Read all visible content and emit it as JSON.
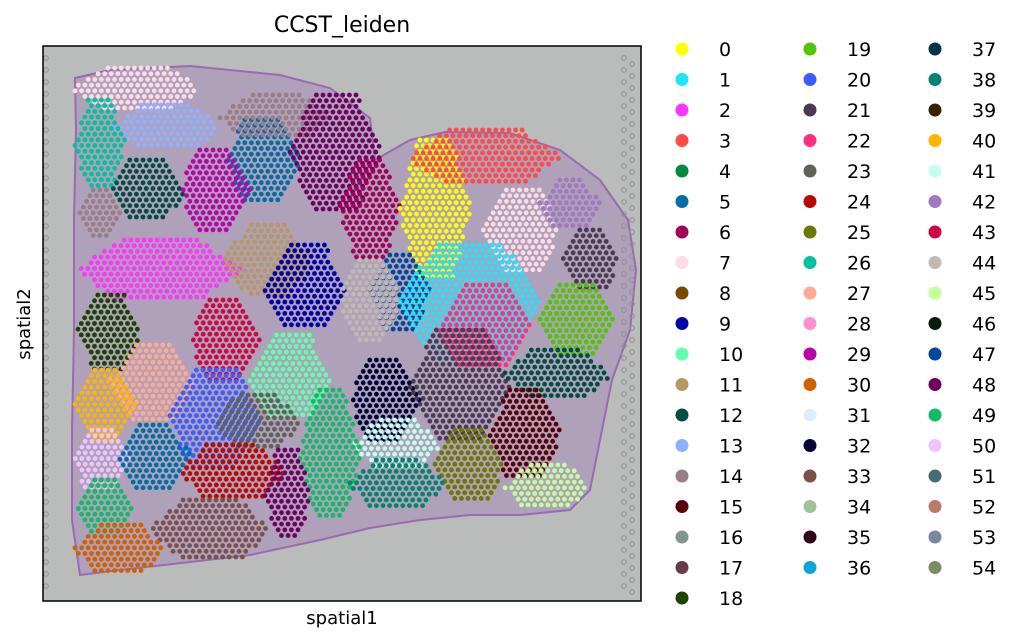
{
  "chart_data": {
    "type": "scatter",
    "title": "CCST_leiden",
    "xlabel": "spatial1",
    "ylabel": "spatial2",
    "grid": false,
    "ticks": false,
    "background": "tissue-image",
    "legend": {
      "placement": "right",
      "columns": 3,
      "entries": [
        {
          "label": "0",
          "color": "#ffff00"
        },
        {
          "label": "1",
          "color": "#1ce6ff"
        },
        {
          "label": "2",
          "color": "#ff34ff"
        },
        {
          "label": "3",
          "color": "#ff4a46"
        },
        {
          "label": "4",
          "color": "#008941"
        },
        {
          "label": "5",
          "color": "#006fa6"
        },
        {
          "label": "6",
          "color": "#a30059"
        },
        {
          "label": "7",
          "color": "#ffdbe5"
        },
        {
          "label": "8",
          "color": "#7a4900"
        },
        {
          "label": "9",
          "color": "#0000a6"
        },
        {
          "label": "10",
          "color": "#63ffac"
        },
        {
          "label": "11",
          "color": "#b79762"
        },
        {
          "label": "12",
          "color": "#004d43"
        },
        {
          "label": "13",
          "color": "#8fb0ff"
        },
        {
          "label": "14",
          "color": "#997d87"
        },
        {
          "label": "15",
          "color": "#5a0007"
        },
        {
          "label": "16",
          "color": "#809693"
        },
        {
          "label": "17",
          "color": "#6a3a4c"
        },
        {
          "label": "18",
          "color": "#1b4400"
        },
        {
          "label": "19",
          "color": "#4fc601"
        },
        {
          "label": "20",
          "color": "#3b5dff"
        },
        {
          "label": "21",
          "color": "#4a3b53"
        },
        {
          "label": "22",
          "color": "#ff2f80"
        },
        {
          "label": "23",
          "color": "#61615a"
        },
        {
          "label": "24",
          "color": "#ba0900"
        },
        {
          "label": "25",
          "color": "#6b7900"
        },
        {
          "label": "26",
          "color": "#00c2a0"
        },
        {
          "label": "27",
          "color": "#ffaa92"
        },
        {
          "label": "28",
          "color": "#ff90c9"
        },
        {
          "label": "29",
          "color": "#b903aa"
        },
        {
          "label": "30",
          "color": "#d16100"
        },
        {
          "label": "31",
          "color": "#ddefff"
        },
        {
          "label": "32",
          "color": "#000035"
        },
        {
          "label": "33",
          "color": "#7b4f4b"
        },
        {
          "label": "34",
          "color": "#a1c299"
        },
        {
          "label": "35",
          "color": "#300018"
        },
        {
          "label": "36",
          "color": "#0aa6d8"
        },
        {
          "label": "37",
          "color": "#013349"
        },
        {
          "label": "38",
          "color": "#00846f"
        },
        {
          "label": "39",
          "color": "#372101"
        },
        {
          "label": "40",
          "color": "#ffb500"
        },
        {
          "label": "41",
          "color": "#c2ffed"
        },
        {
          "label": "42",
          "color": "#a079bf"
        },
        {
          "label": "43",
          "color": "#cc0744"
        },
        {
          "label": "44",
          "color": "#c0b9b2"
        },
        {
          "label": "45",
          "color": "#c2ff99"
        },
        {
          "label": "46",
          "color": "#001e09"
        },
        {
          "label": "47",
          "color": "#00489c"
        },
        {
          "label": "48",
          "color": "#6f0062"
        },
        {
          "label": "49",
          "color": "#0cbd66"
        },
        {
          "label": "50",
          "color": "#eec3ff"
        },
        {
          "label": "51",
          "color": "#456d75"
        },
        {
          "label": "52",
          "color": "#b77b68"
        },
        {
          "label": "53",
          "color": "#7a87a1"
        },
        {
          "label": "54",
          "color": "#788d66"
        }
      ]
    },
    "regions": [
      {
        "cluster": "7",
        "x": [
          75,
          200
        ],
        "y": [
          68,
          110
        ]
      },
      {
        "cluster": "13",
        "x": [
          115,
          220
        ],
        "y": [
          105,
          150
        ]
      },
      {
        "cluster": "5",
        "x": [
          225,
          300
        ],
        "y": [
          120,
          200
        ]
      },
      {
        "cluster": "14",
        "x": [
          220,
          330
        ],
        "y": [
          95,
          140
        ]
      },
      {
        "cluster": "26",
        "x": [
          75,
          125
        ],
        "y": [
          100,
          190
        ]
      },
      {
        "cluster": "12",
        "x": [
          110,
          185
        ],
        "y": [
          160,
          220
        ]
      },
      {
        "cluster": "29",
        "x": [
          180,
          250
        ],
        "y": [
          150,
          230
        ]
      },
      {
        "cluster": "48",
        "x": [
          290,
          380
        ],
        "y": [
          95,
          210
        ]
      },
      {
        "cluster": "14",
        "x": [
          80,
          120
        ],
        "y": [
          190,
          240
        ]
      },
      {
        "cluster": "2",
        "x": [
          78,
          240
        ],
        "y": [
          240,
          300
        ]
      },
      {
        "cluster": "11",
        "x": [
          225,
          310
        ],
        "y": [
          225,
          295
        ]
      },
      {
        "cluster": "9",
        "x": [
          265,
          345
        ],
        "y": [
          245,
          330
        ]
      },
      {
        "cluster": "6",
        "x": [
          340,
          400
        ],
        "y": [
          160,
          260
        ]
      },
      {
        "cluster": "0",
        "x": [
          400,
          470
        ],
        "y": [
          140,
          280
        ]
      },
      {
        "cluster": "3",
        "x": [
          410,
          560
        ],
        "y": [
          130,
          185
        ]
      },
      {
        "cluster": "7",
        "x": [
          480,
          560
        ],
        "y": [
          190,
          270
        ]
      },
      {
        "cluster": "42",
        "x": [
          540,
          600
        ],
        "y": [
          180,
          230
        ]
      },
      {
        "cluster": "21",
        "x": [
          560,
          620
        ],
        "y": [
          230,
          290
        ]
      },
      {
        "cluster": "47",
        "x": [
          370,
          430
        ],
        "y": [
          255,
          330
        ]
      },
      {
        "cluster": "1",
        "x": [
          400,
          540
        ],
        "y": [
          245,
          360
        ]
      },
      {
        "cluster": "22",
        "x": [
          440,
          530
        ],
        "y": [
          285,
          370
        ]
      },
      {
        "cluster": "19",
        "x": [
          540,
          615
        ],
        "y": [
          285,
          355
        ]
      },
      {
        "cluster": "44",
        "x": [
          340,
          400
        ],
        "y": [
          260,
          340
        ]
      },
      {
        "cluster": "18",
        "x": [
          78,
          140
        ],
        "y": [
          295,
          370
        ]
      },
      {
        "cluster": "27",
        "x": [
          110,
          195
        ],
        "y": [
          345,
          420
        ]
      },
      {
        "cluster": "40",
        "x": [
          75,
          135
        ],
        "y": [
          370,
          440
        ]
      },
      {
        "cluster": "43",
        "x": [
          190,
          260
        ],
        "y": [
          300,
          380
        ]
      },
      {
        "cluster": "10",
        "x": [
          250,
          330
        ],
        "y": [
          335,
          420
        ]
      },
      {
        "cluster": "20",
        "x": [
          170,
          260
        ],
        "y": [
          370,
          470
        ]
      },
      {
        "cluster": "32",
        "x": [
          350,
          420
        ],
        "y": [
          360,
          440
        ]
      },
      {
        "cluster": "41",
        "x": [
          355,
          440
        ],
        "y": [
          420,
          470
        ]
      },
      {
        "cluster": "21",
        "x": [
          410,
          510
        ],
        "y": [
          330,
          440
        ]
      },
      {
        "cluster": "12",
        "x": [
          505,
          610
        ],
        "y": [
          350,
          400
        ]
      },
      {
        "cluster": "15",
        "x": [
          490,
          560
        ],
        "y": [
          390,
          480
        ]
      },
      {
        "cluster": "25",
        "x": [
          435,
          505
        ],
        "y": [
          430,
          500
        ]
      },
      {
        "cluster": "45",
        "x": [
          505,
          590
        ],
        "y": [
          465,
          510
        ]
      },
      {
        "cluster": "50",
        "x": [
          72,
          130
        ],
        "y": [
          430,
          490
        ]
      },
      {
        "cluster": "5",
        "x": [
          120,
          190
        ],
        "y": [
          425,
          490
        ]
      },
      {
        "cluster": "23",
        "x": [
          215,
          300
        ],
        "y": [
          395,
          450
        ]
      },
      {
        "cluster": "24",
        "x": [
          180,
          285
        ],
        "y": [
          445,
          500
        ]
      },
      {
        "cluster": "49",
        "x": [
          300,
          360
        ],
        "y": [
          390,
          520
        ]
      },
      {
        "cluster": "48",
        "x": [
          265,
          310
        ],
        "y": [
          450,
          540
        ]
      },
      {
        "cluster": "38",
        "x": [
          350,
          445
        ],
        "y": [
          460,
          510
        ]
      },
      {
        "cluster": "49",
        "x": [
          75,
          135
        ],
        "y": [
          480,
          535
        ]
      },
      {
        "cluster": "33",
        "x": [
          150,
          270
        ],
        "y": [
          500,
          560
        ]
      },
      {
        "cluster": "30",
        "x": [
          75,
          165
        ],
        "y": [
          525,
          575
        ]
      }
    ]
  }
}
